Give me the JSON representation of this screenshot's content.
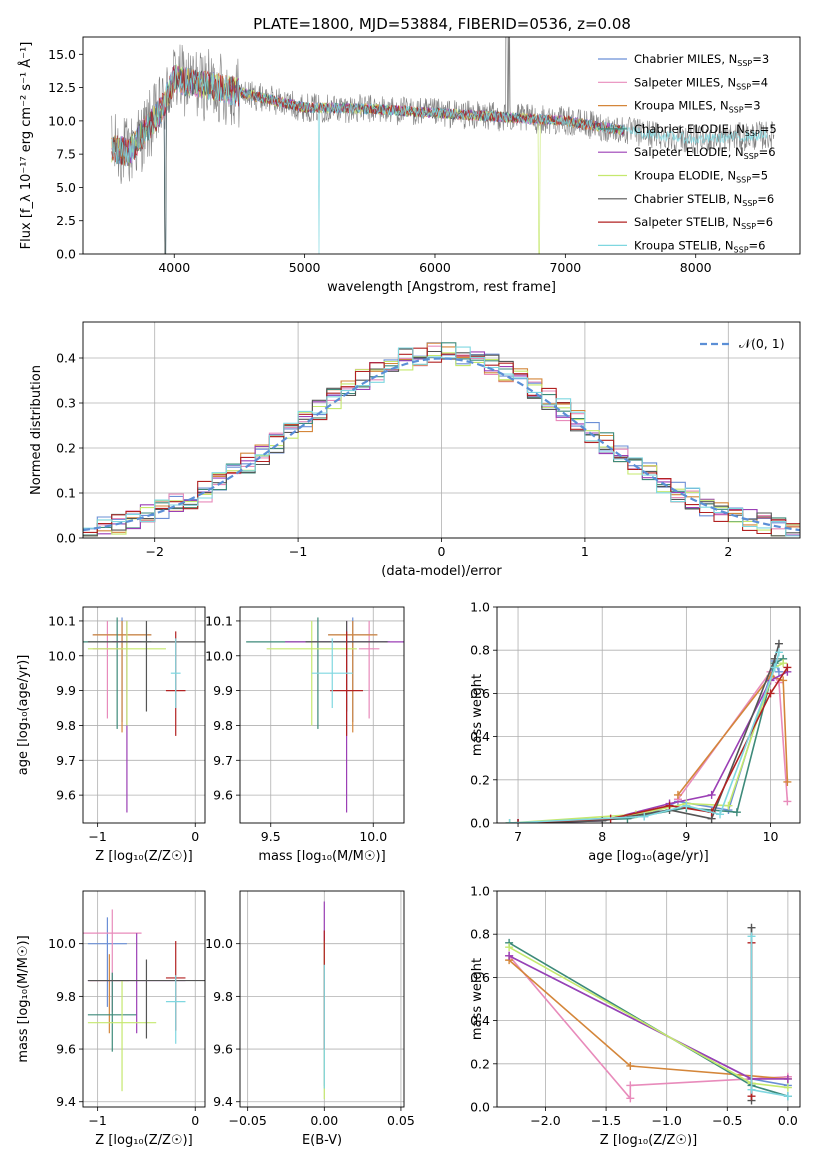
{
  "figure_title": "PLATE=1800, MJD=53884, FIBERID=0536, z=0.08",
  "models": [
    {
      "name": "Chabrier MILES",
      "nssp": "3",
      "color": "#6b8fd6"
    },
    {
      "name": "Salpeter MILES",
      "nssp": "4",
      "color": "#e88bbb"
    },
    {
      "name": "Kroupa MILES",
      "nssp": "3",
      "color": "#d4863a"
    },
    {
      "name": "Chabrier ELODIE",
      "nssp": "5",
      "color": "#3d8a7a"
    },
    {
      "name": "Salpeter ELODIE",
      "nssp": "6",
      "color": "#9b3fb5"
    },
    {
      "name": "Kroupa ELODIE",
      "nssp": "5",
      "color": "#c5e86e"
    },
    {
      "name": "Chabrier STELIB",
      "nssp": "6",
      "color": "#555555"
    },
    {
      "name": "Salpeter STELIB",
      "nssp": "6",
      "color": "#b22222"
    },
    {
      "name": "Kroupa STELIB",
      "nssp": "6",
      "color": "#7fd7e0"
    }
  ],
  "chart_data": [
    {
      "id": "spectrum",
      "type": "line",
      "xlabel": "wavelength [Angstrom, rest frame]",
      "ylabel": "Flux [f_λ 10⁻¹⁷ erg cm⁻² s⁻¹ Å⁻¹]",
      "xlim": [
        3300,
        8800
      ],
      "ylim": [
        0,
        16.3
      ],
      "xticks": [
        4000,
        5000,
        6000,
        7000,
        8000
      ],
      "yticks": [
        0.0,
        2.5,
        5.0,
        7.5,
        10.0,
        12.5,
        15.0
      ],
      "ytick_labels": [
        "0.0",
        "2.5",
        "5.0",
        "7.5",
        "10.0",
        "12.5",
        "15.0"
      ],
      "continuum": {
        "x": [
          3500,
          3650,
          3800,
          3900,
          4000,
          4100,
          4300,
          4600,
          5000,
          5500,
          6000,
          6500,
          7000,
          7500,
          8000,
          8500
        ],
        "y": [
          8.0,
          7.6,
          9.5,
          10.8,
          13.2,
          12.9,
          12.6,
          11.9,
          11.0,
          10.9,
          10.6,
          10.3,
          10.0,
          9.2,
          8.6,
          8.9
        ]
      },
      "data_color": "#808080",
      "grid": false,
      "legend": "top-right"
    },
    {
      "id": "residuals",
      "type": "histogram",
      "xlabel": "(data-model)/error",
      "ylabel": "Normed distribution",
      "xlim": [
        -2.5,
        2.5
      ],
      "ylim": [
        0,
        0.48
      ],
      "xticks": [
        -2,
        -1,
        0,
        1,
        2
      ],
      "xtick_labels": [
        "−2",
        "−1",
        "0",
        "1",
        "2"
      ],
      "yticks": [
        0.0,
        0.1,
        0.2,
        0.3,
        0.4
      ],
      "ytick_labels": [
        "0.0",
        "0.1",
        "0.2",
        "0.3",
        "0.4"
      ],
      "bin_width": 0.1,
      "reference": {
        "label": "𝒩(0, 1)",
        "color": "#5b8fd6"
      },
      "grid": true,
      "legend": "top-right"
    },
    {
      "id": "age_vs_Z",
      "type": "errorbar",
      "xlabel": "Z [log₁₀(Z/Z☉)]",
      "ylabel": "age [log₁₀(age/yr)]",
      "xlim": [
        -1.15,
        0.1
      ],
      "ylim": [
        9.52,
        10.14
      ],
      "xticks": [
        -1,
        0
      ],
      "xtick_labels": [
        "−1",
        "0"
      ],
      "yticks": [
        9.6,
        9.7,
        9.8,
        9.9,
        10.0,
        10.1
      ],
      "ytick_labels": [
        "9.6",
        "9.7",
        "9.8",
        "9.9",
        "10.0",
        "10.1"
      ],
      "points": [
        {
          "x": -0.75,
          "y": 10.06,
          "xerr": 0.3,
          "yerr": [
            0.25,
            0.05
          ],
          "model": 0
        },
        {
          "x": -0.9,
          "y": 10.02,
          "xerr": 0.15,
          "yerr": [
            0.2,
            0.08
          ],
          "model": 1
        },
        {
          "x": -0.75,
          "y": 10.06,
          "xerr": 0.3,
          "yerr": [
            0.28,
            0.04
          ],
          "model": 2
        },
        {
          "x": -0.8,
          "y": 10.04,
          "xerr": 0.35,
          "yerr": [
            0.25,
            0.07
          ],
          "model": 3
        },
        {
          "x": -0.7,
          "y": 10.04,
          "xerr": 0.15,
          "yerr": [
            0.49,
            0.06
          ],
          "model": 4
        },
        {
          "x": -0.7,
          "y": 10.02,
          "xerr": 0.4,
          "yerr": [
            0.22,
            0.08
          ],
          "model": 5
        },
        {
          "x": -0.5,
          "y": 10.04,
          "xerr": 0.6,
          "yerr": [
            0.2,
            0.06
          ],
          "model": 6
        },
        {
          "x": -0.2,
          "y": 9.9,
          "xerr": 0.1,
          "yerr": [
            0.13,
            0.17
          ],
          "model": 7
        },
        {
          "x": -0.2,
          "y": 9.95,
          "xerr": 0.05,
          "yerr": [
            0.1,
            0.1
          ],
          "model": 8
        }
      ],
      "grid": true
    },
    {
      "id": "age_vs_mass",
      "type": "errorbar",
      "xlabel": "mass [log₁₀(M/M☉)]",
      "ylabel": "",
      "xlim": [
        9.35,
        10.15
      ],
      "ylim": [
        9.52,
        10.14
      ],
      "xticks": [
        9.5,
        10.0
      ],
      "xtick_labels": [
        "9.5",
        "10.0"
      ],
      "yticks": [
        9.6,
        9.7,
        9.8,
        9.9,
        10.0,
        10.1
      ],
      "ytick_labels": [
        "9.6",
        "9.7",
        "9.8",
        "9.9",
        "10.0",
        "10.1"
      ],
      "points": [
        {
          "x": 9.9,
          "y": 10.06,
          "xerr": 0.12,
          "yerr": [
            0.25,
            0.05
          ],
          "model": 0
        },
        {
          "x": 9.98,
          "y": 10.02,
          "xerr": 0.05,
          "yerr": [
            0.2,
            0.08
          ],
          "model": 1
        },
        {
          "x": 9.9,
          "y": 10.06,
          "xerr": 0.12,
          "yerr": [
            0.28,
            0.04
          ],
          "model": 2
        },
        {
          "x": 9.73,
          "y": 10.04,
          "xerr": 0.35,
          "yerr": [
            0.25,
            0.07
          ],
          "model": 3
        },
        {
          "x": 9.87,
          "y": 10.04,
          "xerr": 0.3,
          "yerr": [
            0.49,
            0.06
          ],
          "model": 4
        },
        {
          "x": 9.7,
          "y": 10.02,
          "xerr": 0.22,
          "yerr": [
            0.22,
            0.08
          ],
          "model": 5
        },
        {
          "x": 9.87,
          "y": 10.04,
          "xerr": 0.2,
          "yerr": [
            0.2,
            0.06
          ],
          "model": 6
        },
        {
          "x": 9.87,
          "y": 9.9,
          "xerr": 0.08,
          "yerr": [
            0.13,
            0.17
          ],
          "model": 7
        },
        {
          "x": 9.8,
          "y": 9.95,
          "xerr": 0.1,
          "yerr": [
            0.1,
            0.1
          ],
          "model": 8
        }
      ],
      "grid": true
    },
    {
      "id": "weight_vs_age",
      "type": "line",
      "xlabel": "age [log₁₀(age/yr)]",
      "ylabel": "mass weight",
      "xlim": [
        6.75,
        10.35
      ],
      "ylim": [
        0,
        1
      ],
      "xticks": [
        7,
        8,
        9,
        10
      ],
      "xtick_labels": [
        "7",
        "8",
        "9",
        "10"
      ],
      "yticks": [
        0.0,
        0.2,
        0.4,
        0.6,
        0.8,
        1.0
      ],
      "ytick_labels": [
        "0.0",
        "0.2",
        "0.4",
        "0.6",
        "0.8",
        "1.0"
      ],
      "series": [
        {
          "model": 0,
          "x": [
            7.0,
            8.5,
            8.9,
            9.5,
            10.05,
            10.1
          ],
          "y": [
            0.0,
            0.03,
            0.1,
            0.06,
            0.75,
            0.7
          ]
        },
        {
          "model": 1,
          "x": [
            8.9,
            10.0,
            10.1,
            10.2
          ],
          "y": [
            0.11,
            0.7,
            0.65,
            0.1
          ]
        },
        {
          "model": 2,
          "x": [
            8.9,
            10.0,
            10.15,
            10.2
          ],
          "y": [
            0.13,
            0.68,
            0.66,
            0.19
          ]
        },
        {
          "model": 3,
          "x": [
            6.9,
            8.3,
            9.0,
            9.6,
            10.05,
            10.15
          ],
          "y": [
            0.0,
            0.02,
            0.07,
            0.05,
            0.74,
            0.76
          ]
        },
        {
          "model": 4,
          "x": [
            7.0,
            8.0,
            8.8,
            9.3,
            10.0,
            10.2
          ],
          "y": [
            0.0,
            0.01,
            0.09,
            0.13,
            0.66,
            0.7
          ]
        },
        {
          "model": 5,
          "x": [
            6.9,
            8.4,
            9.0,
            9.5,
            10.05,
            10.15
          ],
          "y": [
            0.0,
            0.04,
            0.09,
            0.08,
            0.72,
            0.74
          ]
        },
        {
          "model": 6,
          "x": [
            7.0,
            8.0,
            8.8,
            9.3,
            10.05,
            10.1
          ],
          "y": [
            0.0,
            0.01,
            0.06,
            0.02,
            0.76,
            0.83
          ]
        },
        {
          "model": 7,
          "x": [
            7.0,
            8.1,
            8.8,
            9.3,
            10.0,
            10.2
          ],
          "y": [
            0.0,
            0.02,
            0.08,
            0.05,
            0.6,
            0.72
          ]
        },
        {
          "model": 8,
          "x": [
            6.9,
            8.5,
            9.0,
            9.4,
            10.05,
            10.1
          ],
          "y": [
            0.0,
            0.03,
            0.08,
            0.04,
            0.72,
            0.79
          ]
        }
      ],
      "grid": true
    },
    {
      "id": "mass_vs_Z",
      "type": "errorbar",
      "xlabel": "Z [log₁₀(Z/Z☉)]",
      "ylabel": "mass [log₁₀(M/M☉)]",
      "xlim": [
        -1.15,
        0.1
      ],
      "ylim": [
        9.38,
        10.2
      ],
      "xticks": [
        -1,
        0
      ],
      "xtick_labels": [
        "−1",
        "0"
      ],
      "yticks": [
        9.4,
        9.6,
        9.8,
        10.0
      ],
      "ytick_labels": [
        "9.4",
        "9.6",
        "9.8",
        "10.0"
      ],
      "points": [
        {
          "x": -0.9,
          "y": 10.0,
          "xerr": 0.2,
          "yerr": [
            0.24,
            0.1
          ],
          "model": 0
        },
        {
          "x": -0.85,
          "y": 10.04,
          "xerr": 0.3,
          "yerr": [
            0.3,
            0.09
          ],
          "model": 1
        },
        {
          "x": -0.88,
          "y": 9.86,
          "xerr": 0.2,
          "yerr": [
            0.2,
            0.1
          ],
          "model": 2
        },
        {
          "x": -0.85,
          "y": 9.73,
          "xerr": 0.25,
          "yerr": [
            0.14,
            0.16
          ],
          "model": 3
        },
        {
          "x": -0.6,
          "y": 9.86,
          "xerr": 0.5,
          "yerr": [
            0.2,
            0.18
          ],
          "model": 4
        },
        {
          "x": -0.75,
          "y": 9.7,
          "xerr": 0.35,
          "yerr": [
            0.26,
            0.16
          ],
          "model": 5
        },
        {
          "x": -0.5,
          "y": 9.86,
          "xerr": 0.6,
          "yerr": [
            0.22,
            0.08
          ],
          "model": 6
        },
        {
          "x": -0.2,
          "y": 9.87,
          "xerr": 0.1,
          "yerr": [
            0.2,
            0.14
          ],
          "model": 7
        },
        {
          "x": -0.2,
          "y": 9.78,
          "xerr": 0.1,
          "yerr": [
            0.16,
            0.1
          ],
          "model": 8
        }
      ],
      "grid": true
    },
    {
      "id": "mass_vs_EBV",
      "type": "errorbar",
      "xlabel": "E(B-V)",
      "ylabel": "",
      "xlim": [
        -0.055,
        0.052
      ],
      "ylim": [
        9.38,
        10.2
      ],
      "xticks": [
        -0.05,
        0.0,
        0.05
      ],
      "xtick_labels": [
        "−0.05",
        "0.00",
        "0.05"
      ],
      "yticks": [
        9.4,
        9.6,
        9.8,
        10.0
      ],
      "ytick_labels": [
        "9.4",
        "9.6",
        "9.8",
        "10.0"
      ],
      "points": [
        {
          "x": 0.0,
          "y": 9.86,
          "xerr": 0.0,
          "yerr": [
            0.4,
            0.3
          ],
          "model": 4
        },
        {
          "x": 0.0,
          "y": 9.86,
          "xerr": 0.0,
          "yerr": [
            0.45,
            0.15
          ],
          "model": 5
        },
        {
          "x": 0.0,
          "y": 9.9,
          "xerr": 0.0,
          "yerr": [
            0.3,
            0.15
          ],
          "model": 7
        },
        {
          "x": 0.0,
          "y": 9.8,
          "xerr": 0.0,
          "yerr": [
            0.35,
            0.12
          ],
          "model": 8
        }
      ],
      "grid": true
    },
    {
      "id": "weight_vs_Z",
      "type": "line",
      "xlabel": "Z [log₁₀(Z/Z☉)]",
      "ylabel": "mass weight",
      "xlim": [
        -2.4,
        0.1
      ],
      "ylim": [
        0,
        1
      ],
      "xticks": [
        -2.0,
        -1.5,
        -1.0,
        -0.5,
        0.0
      ],
      "xtick_labels": [
        "−2.0",
        "−1.5",
        "−1.0",
        "−0.5",
        "0.0"
      ],
      "yticks": [
        0.0,
        0.2,
        0.4,
        0.6,
        0.8,
        1.0
      ],
      "ytick_labels": [
        "0.0",
        "0.2",
        "0.4",
        "0.6",
        "0.8",
        "1.0"
      ],
      "series": [
        {
          "model": 0,
          "x": [
            -2.3,
            -0.3,
            0.0
          ],
          "y": [
            0.7,
            0.13,
            0.1
          ]
        },
        {
          "model": 1,
          "x": [
            -2.3,
            -1.3,
            -1.3,
            0.0
          ],
          "y": [
            0.7,
            0.04,
            0.1,
            0.14
          ]
        },
        {
          "model": 2,
          "x": [
            -2.3,
            -1.3,
            0.0
          ],
          "y": [
            0.68,
            0.19,
            0.13
          ]
        },
        {
          "model": 3,
          "x": [
            -2.3,
            -0.3,
            0.0
          ],
          "y": [
            0.76,
            0.1,
            0.05
          ]
        },
        {
          "model": 4,
          "x": [
            -2.3,
            -0.3,
            0.0
          ],
          "y": [
            0.7,
            0.13,
            0.13
          ]
        },
        {
          "model": 5,
          "x": [
            -2.3,
            -0.3,
            0.0
          ],
          "y": [
            0.74,
            0.11,
            0.09
          ]
        },
        {
          "model": 6,
          "x": [
            -0.3,
            -0.3
          ],
          "y": [
            0.83,
            0.03
          ]
        },
        {
          "model": 7,
          "x": [
            -0.3,
            -0.3
          ],
          "y": [
            0.76,
            0.05
          ]
        },
        {
          "model": 8,
          "x": [
            -0.3,
            -0.3,
            0.0
          ],
          "y": [
            0.79,
            0.08,
            0.05
          ]
        }
      ],
      "grid": true
    }
  ]
}
